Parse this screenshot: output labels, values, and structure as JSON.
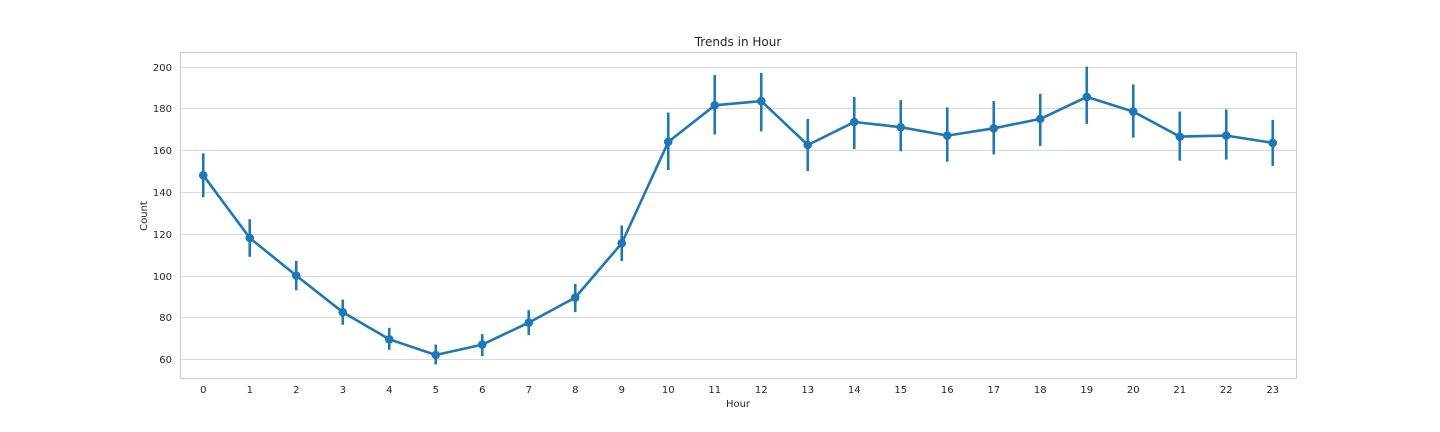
{
  "chart_data": {
    "type": "line",
    "title": "Trends in Hour",
    "xlabel": "Hour",
    "ylabel": "Count",
    "categories": [
      "0",
      "1",
      "2",
      "3",
      "4",
      "5",
      "6",
      "7",
      "8",
      "9",
      "10",
      "11",
      "12",
      "13",
      "14",
      "15",
      "16",
      "17",
      "18",
      "19",
      "20",
      "21",
      "22",
      "23"
    ],
    "series": [
      {
        "values": [
          148,
          118,
          100,
          82.5,
          69.5,
          62,
          67,
          77.5,
          89.5,
          115.5,
          164,
          181.5,
          183.5,
          162.5,
          173.5,
          171,
          167,
          170.5,
          175,
          185.5,
          178.5,
          166.5,
          167,
          163.5
        ],
        "ci_low": [
          137.5,
          109,
          93,
          76.5,
          64.5,
          57.5,
          61.5,
          71.5,
          82.5,
          107,
          150.5,
          167.5,
          169,
          150,
          160.5,
          159.5,
          154.5,
          158,
          162,
          172.5,
          166,
          155,
          155.5,
          152.5
        ],
        "ci_high": [
          158.5,
          127,
          107,
          88.5,
          75,
          67,
          72,
          83.5,
          96,
          124,
          178,
          196,
          197,
          175,
          185.5,
          184,
          180.5,
          183.5,
          187,
          200,
          191.5,
          178.5,
          179.5,
          174.5
        ],
        "color": "#1f77b4"
      }
    ],
    "yticks": [
      60,
      80,
      100,
      120,
      140,
      160,
      180,
      200
    ],
    "ylim": [
      51,
      207
    ],
    "grid": true,
    "legend": "none"
  }
}
